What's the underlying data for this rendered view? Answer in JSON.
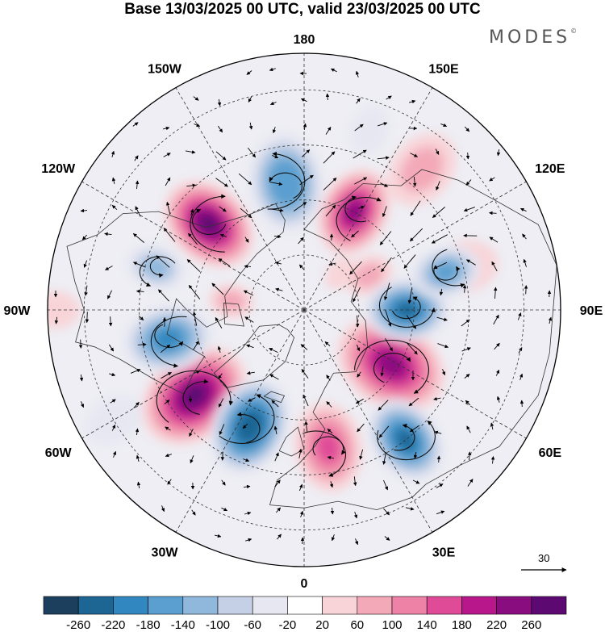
{
  "title": "Base 13/03/2025 00 UTC, valid 23/03/2025 00 UTC",
  "brand": "MODES",
  "brand_mark": "©",
  "longitude_labels": [
    "180",
    "150E",
    "120E",
    "90E",
    "60E",
    "30E",
    "0",
    "30W",
    "60W",
    "90W",
    "120W",
    "150W"
  ],
  "reference_vector": {
    "label": "30",
    "value": 30
  },
  "colorbar": {
    "labels": [
      "-260",
      "-220",
      "-180",
      "-140",
      "-100",
      "-60",
      "-20",
      "20",
      "60",
      "100",
      "140",
      "180",
      "220",
      "260"
    ],
    "colors": [
      "#1c3f5e",
      "#1d6593",
      "#3188c0",
      "#5a9fcf",
      "#8fb8dc",
      "#c5d0e6",
      "#e6e7f1",
      "#ffffff",
      "#f8d4d8",
      "#f3a9b8",
      "#ee82a6",
      "#e04b98",
      "#b8168b",
      "#8a0d80",
      "#5c0a72"
    ]
  },
  "anomalies": [
    {
      "lon": -132,
      "lat": 55,
      "value": 260,
      "size": 1.0
    },
    {
      "lon": 153,
      "lat": 60,
      "value": 240,
      "size": 0.9
    },
    {
      "lon": 118,
      "lat": 70,
      "value": 60,
      "size": 0.5
    },
    {
      "lon": -52,
      "lat": 52,
      "value": 260,
      "size": 1.15
    },
    {
      "lon": 58,
      "lat": 62,
      "value": 230,
      "size": 1.15
    },
    {
      "lon": 10,
      "lat": 52,
      "value": 140,
      "size": 0.9
    },
    {
      "lon": -97,
      "lat": 70,
      "value": 60,
      "size": 0.45
    },
    {
      "lon": -90,
      "lat": 22,
      "value": 40,
      "size": 0.5
    },
    {
      "lon": 140,
      "lat": 40,
      "value": 60,
      "size": 0.8
    },
    {
      "lon": 105,
      "lat": 45,
      "value": 40,
      "size": 0.7
    },
    {
      "lon": 135,
      "lat": 76,
      "value": 50,
      "size": 0.35
    },
    {
      "lon": -172,
      "lat": 55,
      "value": -180,
      "size": 1.0
    },
    {
      "lon": -25,
      "lat": 55,
      "value": -260,
      "size": 1.0
    },
    {
      "lon": 38,
      "lat": 45,
      "value": -230,
      "size": 0.9
    },
    {
      "lon": 90,
      "lat": 62,
      "value": -240,
      "size": 0.85
    },
    {
      "lon": 105,
      "lat": 50,
      "value": -160,
      "size": 0.7
    },
    {
      "lon": -78,
      "lat": 52,
      "value": -200,
      "size": 0.9
    },
    {
      "lon": -106,
      "lat": 48,
      "value": -120,
      "size": 0.6
    },
    {
      "lon": 160,
      "lat": 38,
      "value": -40,
      "size": 0.5
    },
    {
      "lon": -60,
      "lat": 30,
      "value": -60,
      "size": 0.6
    }
  ]
}
